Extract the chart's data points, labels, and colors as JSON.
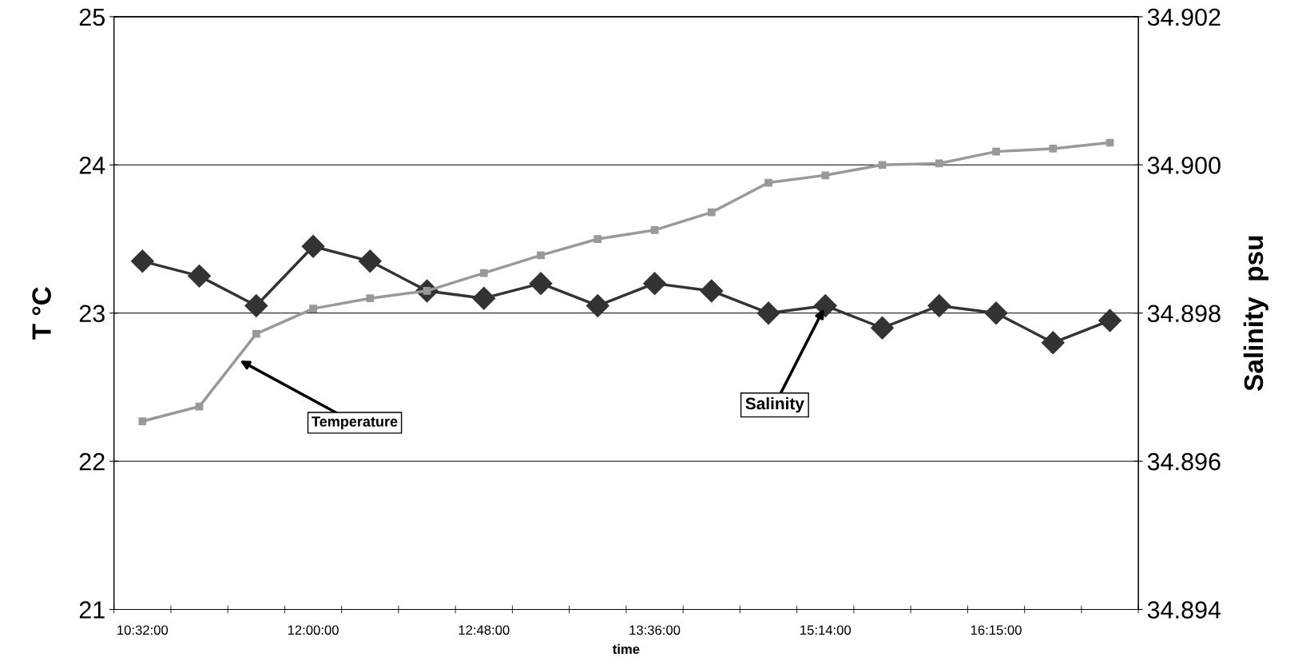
{
  "chart_data": {
    "type": "line",
    "xlabel": "time",
    "ylabel": "T °C",
    "y2label": "Salinity  psu",
    "categories": [
      "10:32:00",
      null,
      null,
      "12:00:00",
      null,
      null,
      "12:48:00",
      null,
      null,
      "13:36:00",
      null,
      null,
      "15:14:00",
      null,
      null,
      "16:15:00",
      null,
      null
    ],
    "series": [
      {
        "color": "#999999",
        "marker": "square",
        "values": [
          22.27,
          22.37,
          22.86,
          23.03,
          23.1,
          23.15,
          23.27,
          23.39,
          23.5,
          23.56,
          23.68,
          23.88,
          23.93,
          24.0,
          24.01,
          24.09,
          24.11,
          24.15
        ]
      },
      {
        "color": "#333333",
        "marker": "diamond",
        "axis": "y2",
        "values": [
          34.8987,
          34.8985,
          34.8981,
          34.8989,
          34.8987,
          34.8983,
          34.8982,
          34.8984,
          34.8981,
          34.8984,
          34.8983,
          34.898,
          34.8981,
          34.8978,
          34.8981,
          34.898,
          34.8976,
          34.8979
        ]
      }
    ],
    "ylim": [
      21,
      25
    ],
    "yticks": [
      21,
      22,
      23,
      24,
      25
    ],
    "y2lim": [
      34.894,
      34.902
    ],
    "y2ticks": [
      {
        "value": 34.894,
        "label": "34.894"
      },
      {
        "value": 34.896,
        "label": "34.896"
      },
      {
        "value": 34.898,
        "label": "34.898"
      },
      {
        "value": 34.9,
        "label": "34.900"
      },
      {
        "value": 34.902,
        "label": "34.902"
      }
    ],
    "grid": "y",
    "legend": false,
    "line_style": "solid",
    "annotations": [
      "Temperature",
      {
        "text": "Salinity",
        "x": "15:14:00",
        "y": 23.05
      }
    ]
  }
}
